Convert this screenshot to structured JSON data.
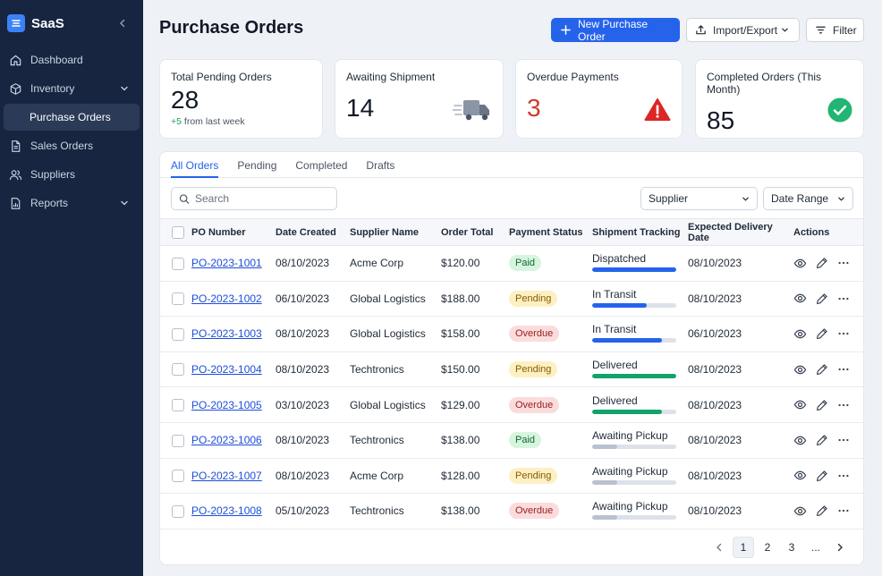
{
  "app": {
    "name": "SaaS"
  },
  "sidebar": {
    "items": [
      {
        "label": "Dashboard",
        "icon": "home-icon"
      },
      {
        "label": "Inventory",
        "icon": "box-icon",
        "expandable": true
      },
      {
        "label": "Purchase Orders",
        "sub": true,
        "active": true
      },
      {
        "label": "Sales Orders",
        "icon": "document-icon"
      },
      {
        "label": "Suppliers",
        "icon": "users-icon"
      },
      {
        "label": "Reports",
        "icon": "report-icon",
        "expandable": true
      }
    ]
  },
  "header": {
    "title": "Purchase Orders",
    "new_label": "New Purchase Order",
    "import_label": "Import/Export",
    "filter_label": "Filter"
  },
  "stats": [
    {
      "title": "Total Pending Orders",
      "value": "28",
      "delta": "+5",
      "sub": "from last week"
    },
    {
      "title": "Awaiting Shipment",
      "value": "14",
      "icon": "truck-icon"
    },
    {
      "title": "Overdue Payments",
      "value": "3",
      "icon": "warning-icon"
    },
    {
      "title": "Completed Orders (This Month)",
      "value": "85",
      "icon": "check-circle-icon"
    }
  ],
  "tabs": [
    "All Orders",
    "Pending",
    "Completed",
    "Drafts"
  ],
  "active_tab": 0,
  "filters": {
    "search_placeholder": "Search",
    "supplier_label": "Supplier",
    "date_label": "Date Range"
  },
  "table": {
    "columns": [
      "PO Number",
      "Date Created",
      "Supplier Name",
      "Order Total",
      "Payment Status",
      "Shipment Tracking",
      "Expected Delivery Date",
      "Actions"
    ],
    "rows": [
      {
        "po": "PO-2023-1001",
        "date": "08/10/2023",
        "supplier": "Acme Corp",
        "total": "$120.00",
        "payment": "Paid",
        "shipment": "Dispatched",
        "progress": 1.0,
        "delivery": "08/10/2023"
      },
      {
        "po": "PO-2023-1002",
        "date": "06/10/2023",
        "supplier": "Global Logistics",
        "total": "$188.00",
        "payment": "Pending",
        "shipment": "In Transit",
        "progress": 0.65,
        "delivery": "08/10/2023"
      },
      {
        "po": "PO-2023-1003",
        "date": "08/10/2023",
        "supplier": "Global Logistics",
        "total": "$158.00",
        "payment": "Overdue",
        "shipment": "In Transit",
        "progress": 0.83,
        "delivery": "06/10/2023"
      },
      {
        "po": "PO-2023-1004",
        "date": "08/10/2023",
        "supplier": "Techtronics",
        "total": "$150.00",
        "payment": "Pending",
        "shipment": "Delivered",
        "progress": 1.0,
        "delivery": "08/10/2023"
      },
      {
        "po": "PO-2023-1005",
        "date": "03/10/2023",
        "supplier": "Global Logistics",
        "total": "$129.00",
        "payment": "Overdue",
        "shipment": "Delivered",
        "progress": 0.83,
        "delivery": "08/10/2023"
      },
      {
        "po": "PO-2023-1006",
        "date": "08/10/2023",
        "supplier": "Techtronics",
        "total": "$138.00",
        "payment": "Paid",
        "shipment": "Awaiting Pickup",
        "progress": 0.3,
        "delivery": "08/10/2023"
      },
      {
        "po": "PO-2023-1007",
        "date": "08/10/2023",
        "supplier": "Acme Corp",
        "total": "$128.00",
        "payment": "Pending",
        "shipment": "Awaiting Pickup",
        "progress": 0.3,
        "delivery": "08/10/2023"
      },
      {
        "po": "PO-2023-1008",
        "date": "05/10/2023",
        "supplier": "Techtronics",
        "total": "$138.00",
        "payment": "Overdue",
        "shipment": "Awaiting Pickup",
        "progress": 0.3,
        "delivery": "08/10/2023"
      }
    ]
  },
  "pagination": {
    "pages": [
      "1",
      "2",
      "3",
      "..."
    ],
    "current": "1"
  },
  "colors": {
    "sidebar_bg": "#172541",
    "primary": "#2563eb",
    "dispatched": "#2563eb",
    "in_transit": "#2563eb",
    "delivered": "#10a36b",
    "awaiting": "#b9c2cf",
    "danger": "#dc2626",
    "success": "#22b573"
  }
}
